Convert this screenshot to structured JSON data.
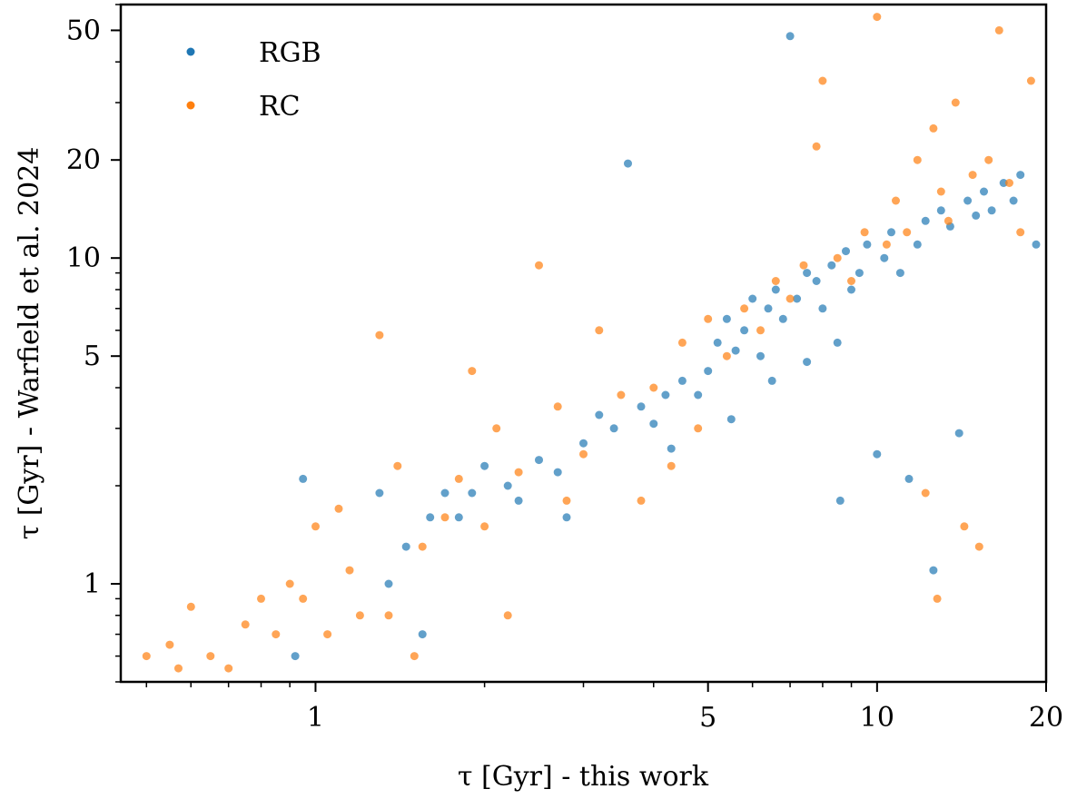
{
  "chart_data": {
    "type": "scatter",
    "xlabel": "τ [Gyr] - this work",
    "ylabel": "τ [Gyr] - Warfield et al. 2024",
    "x_scale": "log",
    "y_scale": "log",
    "xlim": [
      0.45,
      20
    ],
    "ylim": [
      0.5,
      60
    ],
    "x_ticks": [
      1,
      5,
      10,
      20
    ],
    "x_tick_labels": [
      "1",
      "5",
      "10",
      "20"
    ],
    "y_ticks": [
      1,
      5,
      10,
      20,
      50
    ],
    "y_tick_labels": [
      "1",
      "5",
      "10",
      "20",
      "50"
    ],
    "grid": false,
    "legend": {
      "placement": "top-left",
      "entries": [
        "RGB",
        "RC"
      ]
    },
    "series": [
      {
        "name": "RGB",
        "color": "#1f77b4",
        "points": [
          [
            0.92,
            0.6
          ],
          [
            0.95,
            2.1
          ],
          [
            1.3,
            1.9
          ],
          [
            1.35,
            1.0
          ],
          [
            1.45,
            1.3
          ],
          [
            1.55,
            0.7
          ],
          [
            1.6,
            1.6
          ],
          [
            1.7,
            1.9
          ],
          [
            1.8,
            1.6
          ],
          [
            1.9,
            1.9
          ],
          [
            2.0,
            2.3
          ],
          [
            2.2,
            2.0
          ],
          [
            2.3,
            1.8
          ],
          [
            2.5,
            2.4
          ],
          [
            2.7,
            2.2
          ],
          [
            2.8,
            1.6
          ],
          [
            3.0,
            2.7
          ],
          [
            3.2,
            3.3
          ],
          [
            3.4,
            3.0
          ],
          [
            3.6,
            19.5
          ],
          [
            3.8,
            3.5
          ],
          [
            4.0,
            3.1
          ],
          [
            4.2,
            3.8
          ],
          [
            4.5,
            4.2
          ],
          [
            4.8,
            3.8
          ],
          [
            5.0,
            4.5
          ],
          [
            5.2,
            5.5
          ],
          [
            5.4,
            6.5
          ],
          [
            5.6,
            5.2
          ],
          [
            5.8,
            6.0
          ],
          [
            6.0,
            7.5
          ],
          [
            6.2,
            5.0
          ],
          [
            6.4,
            7.0
          ],
          [
            6.6,
            8.0
          ],
          [
            6.8,
            6.5
          ],
          [
            7.0,
            48.0
          ],
          [
            7.2,
            7.5
          ],
          [
            7.5,
            9.0
          ],
          [
            7.8,
            8.5
          ],
          [
            8.0,
            7.0
          ],
          [
            8.3,
            9.5
          ],
          [
            8.6,
            1.8
          ],
          [
            8.8,
            10.5
          ],
          [
            9.0,
            8.0
          ],
          [
            9.3,
            9.0
          ],
          [
            9.6,
            11.0
          ],
          [
            10.0,
            2.5
          ],
          [
            10.3,
            10.0
          ],
          [
            10.6,
            12.0
          ],
          [
            11.0,
            9.0
          ],
          [
            11.4,
            2.1
          ],
          [
            11.8,
            11.0
          ],
          [
            12.2,
            13.0
          ],
          [
            12.6,
            1.1
          ],
          [
            13.0,
            14.0
          ],
          [
            13.5,
            12.5
          ],
          [
            14.0,
            2.9
          ],
          [
            14.5,
            15.0
          ],
          [
            15.0,
            13.5
          ],
          [
            15.5,
            16.0
          ],
          [
            16.0,
            14.0
          ],
          [
            16.8,
            17.0
          ],
          [
            17.5,
            15.0
          ],
          [
            18.0,
            18.0
          ],
          [
            19.2,
            11.0
          ],
          [
            4.3,
            2.6
          ],
          [
            5.5,
            3.2
          ],
          [
            6.5,
            4.2
          ],
          [
            7.5,
            4.8
          ],
          [
            8.5,
            5.5
          ]
        ]
      },
      {
        "name": "RC",
        "color": "#ff7f0e",
        "points": [
          [
            0.5,
            0.6
          ],
          [
            0.55,
            0.65
          ],
          [
            0.57,
            0.55
          ],
          [
            0.6,
            0.85
          ],
          [
            0.65,
            0.6
          ],
          [
            0.7,
            0.55
          ],
          [
            0.75,
            0.75
          ],
          [
            0.8,
            0.9
          ],
          [
            0.85,
            0.7
          ],
          [
            0.9,
            1.0
          ],
          [
            0.95,
            0.9
          ],
          [
            1.0,
            1.5
          ],
          [
            1.05,
            0.7
          ],
          [
            1.1,
            1.7
          ],
          [
            1.15,
            1.1
          ],
          [
            1.2,
            0.8
          ],
          [
            1.3,
            5.8
          ],
          [
            1.35,
            0.8
          ],
          [
            1.4,
            2.3
          ],
          [
            1.5,
            0.6
          ],
          [
            1.55,
            1.3
          ],
          [
            1.7,
            1.6
          ],
          [
            1.8,
            2.1
          ],
          [
            1.9,
            4.5
          ],
          [
            2.0,
            1.5
          ],
          [
            2.1,
            3.0
          ],
          [
            2.2,
            0.8
          ],
          [
            2.3,
            2.2
          ],
          [
            2.5,
            9.5
          ],
          [
            2.7,
            3.5
          ],
          [
            2.8,
            1.8
          ],
          [
            3.0,
            2.5
          ],
          [
            3.2,
            6.0
          ],
          [
            3.5,
            3.8
          ],
          [
            3.8,
            1.8
          ],
          [
            4.0,
            4.0
          ],
          [
            4.3,
            2.3
          ],
          [
            4.5,
            5.5
          ],
          [
            4.8,
            3.0
          ],
          [
            5.0,
            6.5
          ],
          [
            5.4,
            5.0
          ],
          [
            5.8,
            7.0
          ],
          [
            6.2,
            6.0
          ],
          [
            6.6,
            8.5
          ],
          [
            7.0,
            7.5
          ],
          [
            7.4,
            9.5
          ],
          [
            7.8,
            22.0
          ],
          [
            8.0,
            35.0
          ],
          [
            8.5,
            10.0
          ],
          [
            9.0,
            8.5
          ],
          [
            9.5,
            12.0
          ],
          [
            10.0,
            55.0
          ],
          [
            10.4,
            11.0
          ],
          [
            10.8,
            15.0
          ],
          [
            11.3,
            12.0
          ],
          [
            11.8,
            20.0
          ],
          [
            12.2,
            1.9
          ],
          [
            12.6,
            25.0
          ],
          [
            13.0,
            16.0
          ],
          [
            13.4,
            13.0
          ],
          [
            13.8,
            30.0
          ],
          [
            14.3,
            1.5
          ],
          [
            14.8,
            18.0
          ],
          [
            15.2,
            1.3
          ],
          [
            15.8,
            20.0
          ],
          [
            16.5,
            50.0
          ],
          [
            17.2,
            17.0
          ],
          [
            18.0,
            12.0
          ],
          [
            18.8,
            35.0
          ],
          [
            12.8,
            0.9
          ]
        ]
      }
    ]
  }
}
